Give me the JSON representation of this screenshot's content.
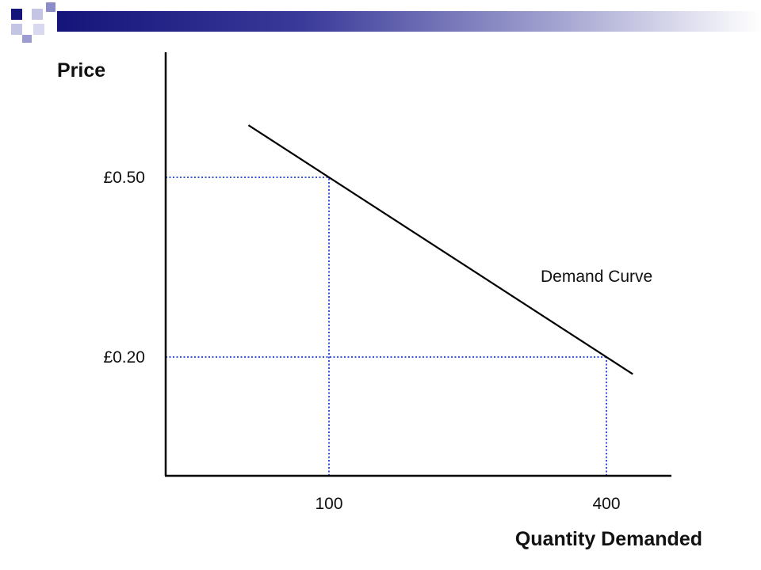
{
  "theme": {
    "accent_dark": "#1a1a80",
    "accent_light": "#b8b8e0",
    "guide_color": "#1f3fd6",
    "curve_color": "#000000"
  },
  "chart_data": {
    "type": "line",
    "title": "",
    "xlabel": "Quantity Demanded",
    "ylabel": "Price",
    "x_ticks": [
      {
        "label": "100",
        "x": 100
      },
      {
        "label": "400",
        "x": 400
      }
    ],
    "y_ticks": [
      {
        "label": "£0.50",
        "y": 0.5
      },
      {
        "label": "£0.20",
        "y": 0.2
      }
    ],
    "series": [
      {
        "name": "Demand Curve",
        "points": [
          [
            100,
            0.5
          ],
          [
            400,
            0.2
          ]
        ],
        "extends_beyond_points": true
      }
    ],
    "annotations": [
      {
        "text": "Demand Curve"
      }
    ],
    "reference_lines": [
      {
        "from": [
          0,
          0.5
        ],
        "to": [
          100,
          0.5
        ],
        "style": "dotted"
      },
      {
        "from": [
          100,
          0
        ],
        "to": [
          100,
          0.5
        ],
        "style": "dotted"
      },
      {
        "from": [
          0,
          0.2
        ],
        "to": [
          400,
          0.2
        ],
        "style": "dotted"
      },
      {
        "from": [
          400,
          0
        ],
        "to": [
          400,
          0.2
        ],
        "style": "dotted"
      }
    ],
    "grid": false,
    "legend": "none"
  }
}
